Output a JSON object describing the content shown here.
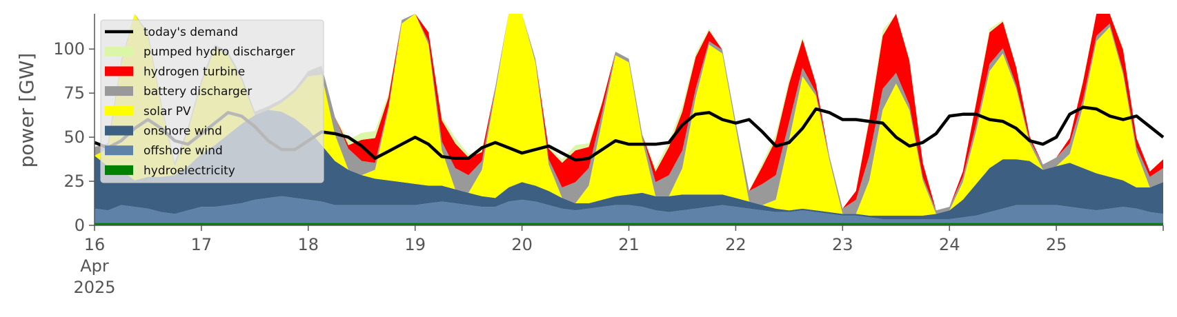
{
  "chart_data": {
    "type": "area",
    "ylabel": "power [GW]",
    "ylim": [
      0,
      120
    ],
    "y_ticks": [
      0,
      25,
      50,
      75,
      100
    ],
    "x_range_days": [
      16,
      26
    ],
    "x_tick_labels": [
      "16",
      "17",
      "18",
      "19",
      "20",
      "21",
      "22",
      "23",
      "24",
      "25"
    ],
    "x_tick_month": "Apr",
    "x_tick_year": "2025",
    "grid": false,
    "legend_location": "top-left",
    "series": [
      {
        "name": "hydroelectricity",
        "color": "#008000",
        "values": [
          1.5,
          1.5,
          1.5,
          1.5,
          1.5,
          1.5,
          1.5,
          1.5,
          1.5,
          1.5,
          1.5,
          1.5,
          1.5,
          1.5,
          1.5,
          1.5,
          1.5,
          1.5,
          1.5,
          1.5,
          1.5,
          1.5,
          1.5,
          1.5,
          1.5,
          1.5,
          1.5,
          1.5,
          1.5,
          1.5,
          1.5,
          1.5,
          1.5,
          1.5,
          1.5,
          1.5,
          1.5,
          1.5,
          1.5,
          1.5,
          1.5,
          1.5,
          1.5,
          1.5,
          1.5,
          1.5,
          1.5,
          1.5,
          1.5,
          1.5,
          1.5,
          1.5,
          1.5,
          1.5,
          1.5,
          1.5,
          1.5,
          1.5,
          1.5,
          1.5,
          1.5,
          1.5,
          1.5,
          1.5,
          1.5,
          1.5,
          1.5,
          1.5,
          1.5,
          1.5,
          1.5,
          1.5,
          1.5,
          1.5,
          1.5,
          1.5,
          1.5,
          1.5,
          1.5,
          1.5,
          1.5
        ]
      },
      {
        "name": "offshore wind",
        "color": "#5f82a8",
        "values": [
          8,
          7,
          10,
          9,
          8,
          6,
          5,
          7,
          9,
          9,
          10,
          11,
          13,
          14,
          15,
          14,
          13,
          12,
          10,
          10,
          10,
          10,
          10,
          10,
          10,
          11,
          12,
          11,
          10,
          9,
          9,
          12,
          13,
          12,
          10,
          8,
          7,
          8,
          9,
          10,
          10,
          9,
          7,
          6,
          7,
          8,
          9,
          10,
          9,
          8,
          7,
          6,
          6,
          7,
          6,
          5,
          4,
          4,
          3,
          2,
          2,
          2,
          2,
          2,
          2,
          3,
          4,
          6,
          8,
          10,
          10,
          10,
          10,
          9,
          8,
          7,
          8,
          9,
          8,
          6,
          5
        ]
      },
      {
        "name": "onshore wind",
        "color": "#3d6082",
        "values": [
          30,
          25,
          20,
          15,
          18,
          20,
          22,
          25,
          30,
          35,
          40,
          45,
          48,
          50,
          48,
          45,
          40,
          32,
          25,
          20,
          17,
          15,
          14,
          13,
          12,
          10,
          9,
          8,
          7,
          6,
          5,
          8,
          10,
          9,
          8,
          6,
          4,
          3,
          4,
          5,
          6,
          8,
          8,
          9,
          9,
          8,
          7,
          6,
          5,
          4,
          3,
          2,
          1,
          1,
          1,
          1,
          1,
          1,
          1,
          2,
          2,
          2,
          2,
          3,
          5,
          10,
          18,
          25,
          28,
          26,
          25,
          20,
          22,
          25,
          23,
          21,
          18,
          15,
          12,
          14,
          18
        ]
      },
      {
        "name": "solar PV",
        "color": "#ffff00",
        "values": [
          0,
          10,
          60,
          100,
          80,
          40,
          5,
          20,
          40,
          55,
          45,
          25,
          0,
          0,
          5,
          15,
          30,
          40,
          15,
          0,
          0,
          5,
          40,
          90,
          110,
          80,
          20,
          0,
          0,
          15,
          60,
          105,
          115,
          70,
          15,
          0,
          0,
          10,
          45,
          80,
          75,
          30,
          0,
          0,
          15,
          55,
          85,
          80,
          40,
          0,
          0,
          5,
          40,
          75,
          65,
          30,
          0,
          0,
          20,
          60,
          75,
          60,
          20,
          0,
          0,
          10,
          30,
          55,
          60,
          40,
          10,
          0,
          0,
          5,
          35,
          75,
          85,
          60,
          20,
          0,
          0
        ]
      },
      {
        "name": "battery discharger",
        "color": "#999999",
        "values": [
          5,
          3,
          2,
          2,
          2,
          2,
          2,
          2,
          2,
          2,
          2,
          2,
          2,
          2,
          2,
          2,
          3,
          5,
          10,
          12,
          8,
          4,
          2,
          2,
          2,
          2,
          5,
          12,
          10,
          5,
          3,
          2,
          2,
          2,
          3,
          6,
          12,
          10,
          5,
          2,
          2,
          3,
          8,
          12,
          10,
          5,
          2,
          2,
          3,
          6,
          12,
          14,
          10,
          5,
          2,
          2,
          3,
          8,
          14,
          12,
          6,
          3,
          2,
          2,
          2,
          3,
          4,
          4,
          3,
          2,
          2,
          3,
          5,
          6,
          4,
          3,
          2,
          2,
          3,
          6,
          8
        ]
      },
      {
        "name": "hydrogen turbine",
        "color": "#ff0000",
        "values": [
          0,
          0,
          0,
          0,
          0,
          0,
          0,
          0,
          0,
          0,
          0,
          0,
          0,
          0,
          0,
          0,
          0,
          0,
          0,
          2,
          12,
          14,
          5,
          0,
          0,
          5,
          12,
          14,
          10,
          5,
          0,
          0,
          0,
          0,
          6,
          14,
          18,
          12,
          5,
          0,
          0,
          0,
          6,
          16,
          22,
          18,
          6,
          0,
          0,
          0,
          10,
          20,
          22,
          16,
          5,
          0,
          0,
          5,
          20,
          30,
          38,
          25,
          8,
          0,
          0,
          3,
          12,
          18,
          15,
          10,
          2,
          0,
          0,
          3,
          10,
          16,
          18,
          12,
          5,
          3,
          5
        ]
      },
      {
        "name": "pumped hydro discharger",
        "color": "#dbf6a6",
        "values": [
          0,
          0,
          0,
          0,
          0,
          0,
          0,
          0,
          0,
          0,
          0,
          0,
          0,
          0,
          0,
          0,
          0,
          0,
          0,
          3,
          4,
          4,
          2,
          0,
          0,
          0,
          2,
          3,
          2,
          1,
          0,
          0,
          0,
          0,
          1,
          2,
          3,
          2,
          1,
          0,
          0,
          0,
          2,
          3,
          3,
          2,
          1,
          0,
          0,
          0,
          2,
          3,
          2,
          1,
          0,
          0,
          0,
          0,
          2,
          3,
          2,
          1,
          0,
          0,
          0,
          0,
          1,
          2,
          1,
          0,
          0,
          0,
          0,
          0,
          1,
          2,
          2,
          1,
          0,
          0,
          0
        ]
      }
    ],
    "demand": {
      "name": "today's demand",
      "color": "#000000",
      "values": [
        47,
        44,
        48,
        55,
        60,
        55,
        48,
        46,
        52,
        58,
        64,
        62,
        56,
        48,
        43,
        43,
        48,
        53,
        52,
        50,
        45,
        38,
        42,
        46,
        50,
        46,
        39,
        38,
        38,
        44,
        47,
        44,
        41,
        43,
        45,
        41,
        37,
        38,
        43,
        48,
        46,
        46,
        46,
        47,
        57,
        63,
        64,
        60,
        58,
        60,
        53,
        45,
        47,
        55,
        66,
        64,
        60,
        60,
        59,
        58,
        50,
        45,
        47,
        52,
        62,
        63,
        63,
        60,
        59,
        55,
        48,
        46,
        50,
        63,
        67,
        66,
        62,
        60,
        62,
        56,
        50
      ]
    }
  }
}
